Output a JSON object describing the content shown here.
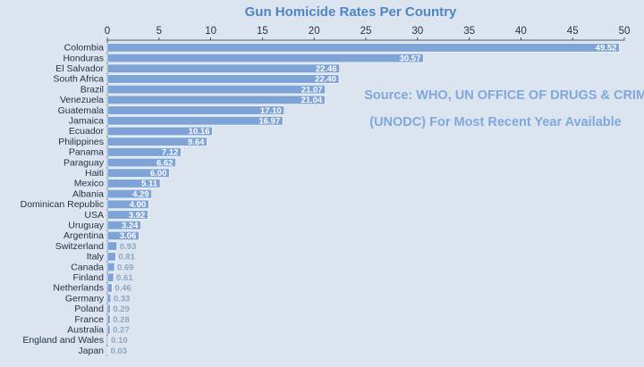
{
  "colors": {
    "background": "#dce5ef",
    "bar": "#7ea3d6",
    "bar_edge": "#ffffff",
    "title": "#4f84c4",
    "axis_text": "#1f2f45",
    "source_text": "#7fa8dc"
  },
  "source": {
    "line1": "Source: WHO, UN OFFICE OF DRUGS & CRIME",
    "line2": "(UNODC) For Most Recent Year Available"
  },
  "chart_data": {
    "type": "bar",
    "orientation": "horizontal",
    "title": "Gun Homicide Rates Per Country",
    "xlabel": "",
    "ylabel": "",
    "xlim": [
      0,
      50
    ],
    "x_ticks": [
      0,
      5,
      10,
      15,
      20,
      25,
      30,
      35,
      40,
      45,
      50
    ],
    "x_axis_position": "top",
    "grid": false,
    "categories": [
      "Colombia",
      "Honduras",
      "El Salvador",
      "South Africa",
      "Brazil",
      "Venezuela",
      "Guatemala",
      "Jamaica",
      "Ecuador",
      "Philippines",
      "Panama",
      "Paraguay",
      "Haiti",
      "Mexico",
      "Albania",
      "Dominican Republic",
      "USA",
      "Uruguay",
      "Argentina",
      "Switzerland",
      "Italy",
      "Canada",
      "Finland",
      "Netherlands",
      "Germany",
      "Poland",
      "France",
      "Australia",
      "England and Wales",
      "Japan"
    ],
    "values": [
      49.52,
      30.57,
      22.46,
      22.4,
      21.07,
      21.04,
      17.1,
      16.97,
      10.16,
      9.64,
      7.12,
      6.62,
      6.0,
      5.11,
      4.29,
      4.0,
      3.92,
      3.24,
      3.06,
      0.93,
      0.81,
      0.69,
      0.61,
      0.46,
      0.33,
      0.29,
      0.28,
      0.27,
      0.1,
      0.03
    ],
    "value_labels": [
      "49.52",
      "30.57",
      "22.46",
      "22.40",
      "21.07",
      "21.04",
      "17.10",
      "16.97",
      "10.16",
      "9.64",
      "7.12",
      "6.62",
      "6.00",
      "5.11",
      "4.29",
      "4.00",
      "3.92",
      "3.24",
      "3.06",
      "0.93",
      "0.81",
      "0.69",
      "0.61",
      "0.46",
      "0.33",
      "0.29",
      "0.28",
      "0.27",
      "0.10",
      "0.03"
    ]
  }
}
